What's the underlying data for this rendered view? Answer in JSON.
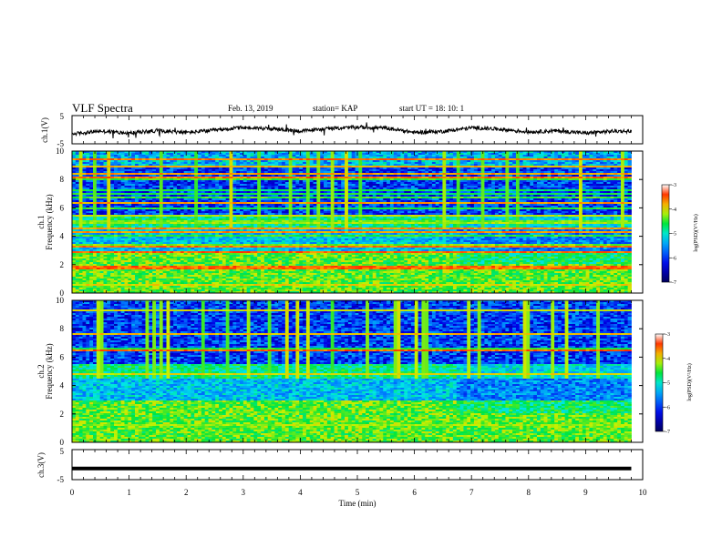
{
  "header": {
    "title": "VLF Spectra",
    "date": "Feb. 13, 2019",
    "station": "station= KAP",
    "start": "start  UT =   18: 10: 1"
  },
  "chart_data": [
    {
      "type": "line",
      "panel": "ch1-voltage",
      "ylabel": "ch.1(V)",
      "ylim": [
        -5,
        5
      ],
      "yticks": [
        "5",
        "-5"
      ],
      "xlim": [
        0,
        10
      ],
      "description_series": [
        {
          "x": [
            0,
            0.5,
            1,
            1.5,
            2,
            2.5,
            3,
            3.5,
            4,
            4.5,
            5,
            5.5,
            6,
            6.5,
            7,
            7.5,
            8,
            8.5,
            9,
            9.5,
            9.8
          ],
          "y": [
            -1.5,
            -0.5,
            -1.2,
            -0.3,
            -1.0,
            -0.2,
            0.8,
            0.3,
            -0.5,
            0.4,
            0.9,
            0.6,
            -1.0,
            -0.6,
            0.7,
            0.2,
            -0.8,
            -0.4,
            -1.2,
            -0.5,
            -0.6
          ]
        }
      ]
    },
    {
      "type": "heatmap",
      "panel": "ch1-spectrogram",
      "ylabel_top": "ch.1",
      "ylabel": "Frequency  (kHz)",
      "ylim": [
        0,
        10
      ],
      "yticks": [
        "0",
        "2",
        "4",
        "6",
        "8",
        "10"
      ],
      "xlim": [
        0,
        9.8
      ],
      "colorbar": {
        "label": "log(PSD)(V²/Hz)",
        "range": [
          -7,
          -3
        ],
        "ticks": [
          "-3",
          "-4",
          "-5",
          "-6",
          "-7"
        ]
      }
    },
    {
      "type": "heatmap",
      "panel": "ch2-spectrogram",
      "ylabel_top": "ch.2",
      "ylabel": "Frequency  (kHz)",
      "ylim": [
        0,
        10
      ],
      "yticks": [
        "0",
        "2",
        "4",
        "6",
        "8",
        "10"
      ],
      "xlim": [
        0,
        9.8
      ],
      "colorbar": {
        "label": "log(PSD)(V²/Hz)",
        "range": [
          -7,
          -3
        ],
        "ticks": [
          "-3",
          "-4",
          "-5",
          "-6",
          "-7"
        ]
      }
    },
    {
      "type": "line",
      "panel": "ch3-voltage",
      "ylabel": "ch.3(V)",
      "ylim": [
        -5,
        5
      ],
      "yticks": [
        "5",
        "-5"
      ],
      "xlim": [
        0,
        10
      ],
      "series": [
        {
          "x": [
            0,
            9.8
          ],
          "y": [
            -1,
            -1
          ]
        }
      ]
    }
  ],
  "xaxis": {
    "label": "Time  (min)",
    "ticks": [
      "0",
      "1",
      "2",
      "3",
      "4",
      "5",
      "6",
      "7",
      "8",
      "9",
      "10"
    ]
  },
  "colors": {
    "axis": "#000000",
    "trace": "#000000"
  }
}
